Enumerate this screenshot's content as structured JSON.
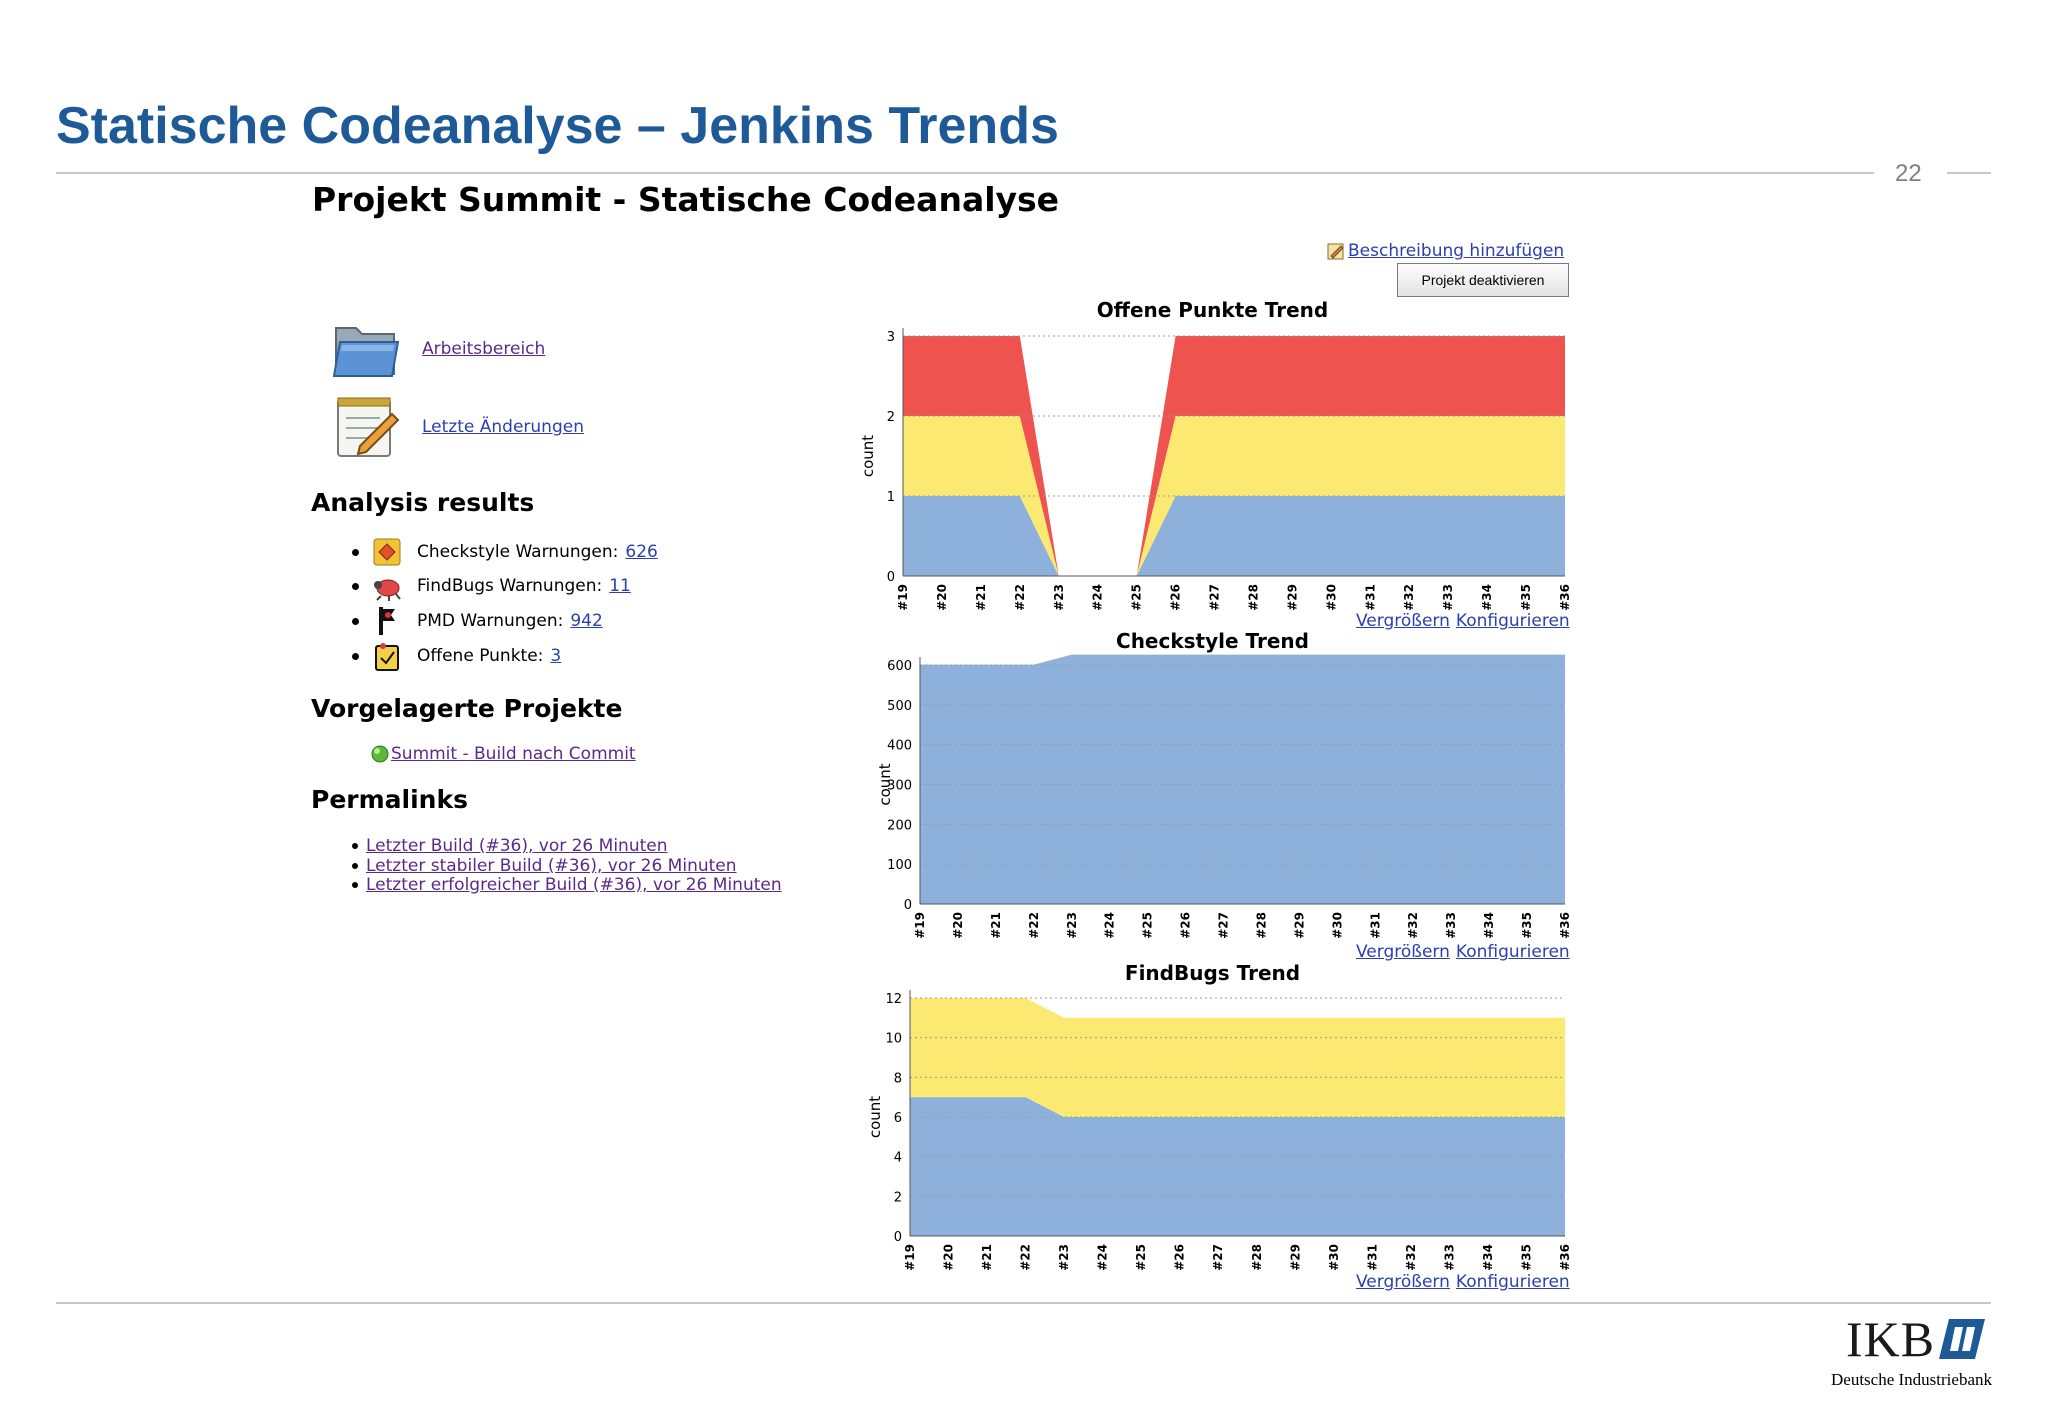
{
  "slide": {
    "title": "Statische Codeanalyse – Jenkins Trends",
    "page_number": "22"
  },
  "jenkins": {
    "project_title": "Projekt Summit - Statische Codeanalyse",
    "add_description": "Beschreibung hinzufügen",
    "deactivate_button": "Projekt deaktivieren",
    "tasks": [
      {
        "label": "Arbeitsbereich",
        "icon": "folder-icon"
      },
      {
        "label": "Letzte Änderungen",
        "icon": "notepad-icon"
      }
    ],
    "analysis": {
      "heading": "Analysis results",
      "items": [
        {
          "label": "Checkstyle Warnungen:",
          "count": "626",
          "icon": "checkstyle-icon"
        },
        {
          "label": "FindBugs Warnungen:",
          "count": "11",
          "icon": "bug-icon"
        },
        {
          "label": "PMD Warnungen:",
          "count": "942",
          "icon": "pmd-icon"
        },
        {
          "label": "Offene Punkte:",
          "count": "3",
          "icon": "tasks-icon"
        }
      ]
    },
    "upstream": {
      "heading": "Vorgelagerte Projekte",
      "items": [
        {
          "label": "Summit - Build nach Commit",
          "status_color": "#5fb83a"
        }
      ]
    },
    "permalinks": {
      "heading": "Permalinks",
      "items": [
        "Letzter Build (#36), vor 26 Minuten",
        "Letzter stabiler Build (#36), vor 26 Minuten",
        "Letzter erfolgreicher Build (#36), vor 26 Minuten"
      ]
    },
    "chart_links": {
      "enlarge": "Vergrößern",
      "configure": "Konfigurieren"
    }
  },
  "brand": {
    "logo_text": "IKB",
    "company": "Deutsche Industriebank",
    "color": "#1f5a98"
  },
  "colors": {
    "blue": "#8eb1dc",
    "yellow": "#fbe971",
    "red": "#ef5350"
  },
  "chart_data": [
    {
      "type": "area",
      "stacked": true,
      "title": "Offene Punkte Trend",
      "ylabel": "count",
      "x": [
        "#19",
        "#20",
        "#21",
        "#22",
        "#23",
        "#24",
        "#25",
        "#26",
        "#27",
        "#28",
        "#29",
        "#30",
        "#31",
        "#32",
        "#33",
        "#34",
        "#35",
        "#36"
      ],
      "ylim": [
        0,
        3
      ],
      "yticks": [
        0,
        1,
        2,
        3
      ],
      "series": [
        {
          "color": "#8eb1dc",
          "values": [
            1,
            1,
            1,
            1,
            0,
            0,
            0,
            1,
            1,
            1,
            1,
            1,
            1,
            1,
            1,
            1,
            1,
            1
          ]
        },
        {
          "color": "#fbe971",
          "values": [
            1,
            1,
            1,
            1,
            0,
            0,
            0,
            1,
            1,
            1,
            1,
            1,
            1,
            1,
            1,
            1,
            1,
            1
          ]
        },
        {
          "color": "#ef5350",
          "values": [
            1,
            1,
            1,
            1,
            0,
            0,
            0,
            1,
            1,
            1,
            1,
            1,
            1,
            1,
            1,
            1,
            1,
            1
          ]
        }
      ]
    },
    {
      "type": "area",
      "stacked": true,
      "title": "Checkstyle Trend",
      "ylabel": "count",
      "x": [
        "#19",
        "#20",
        "#21",
        "#22",
        "#23",
        "#24",
        "#25",
        "#26",
        "#27",
        "#28",
        "#29",
        "#30",
        "#31",
        "#32",
        "#33",
        "#34",
        "#35",
        "#36"
      ],
      "ylim": [
        0,
        600
      ],
      "yticks": [
        0,
        100,
        200,
        300,
        400,
        500,
        600
      ],
      "series": [
        {
          "color": "#8eb1dc",
          "values": [
            601,
            601,
            601,
            601,
            626,
            626,
            626,
            626,
            626,
            626,
            626,
            626,
            626,
            626,
            626,
            626,
            626,
            626
          ]
        }
      ]
    },
    {
      "type": "area",
      "stacked": true,
      "title": "FindBugs Trend",
      "ylabel": "count",
      "x": [
        "#19",
        "#20",
        "#21",
        "#22",
        "#23",
        "#24",
        "#25",
        "#26",
        "#27",
        "#28",
        "#29",
        "#30",
        "#31",
        "#32",
        "#33",
        "#34",
        "#35",
        "#36"
      ],
      "ylim": [
        0,
        12
      ],
      "yticks": [
        0,
        2,
        4,
        6,
        8,
        10,
        12
      ],
      "series": [
        {
          "color": "#8eb1dc",
          "values": [
            7,
            7,
            7,
            7,
            6,
            6,
            6,
            6,
            6,
            6,
            6,
            6,
            6,
            6,
            6,
            6,
            6,
            6
          ]
        },
        {
          "color": "#fbe971",
          "values": [
            5,
            5,
            5,
            5,
            5,
            5,
            5,
            5,
            5,
            5,
            5,
            5,
            5,
            5,
            5,
            5,
            5,
            5
          ]
        }
      ]
    }
  ]
}
